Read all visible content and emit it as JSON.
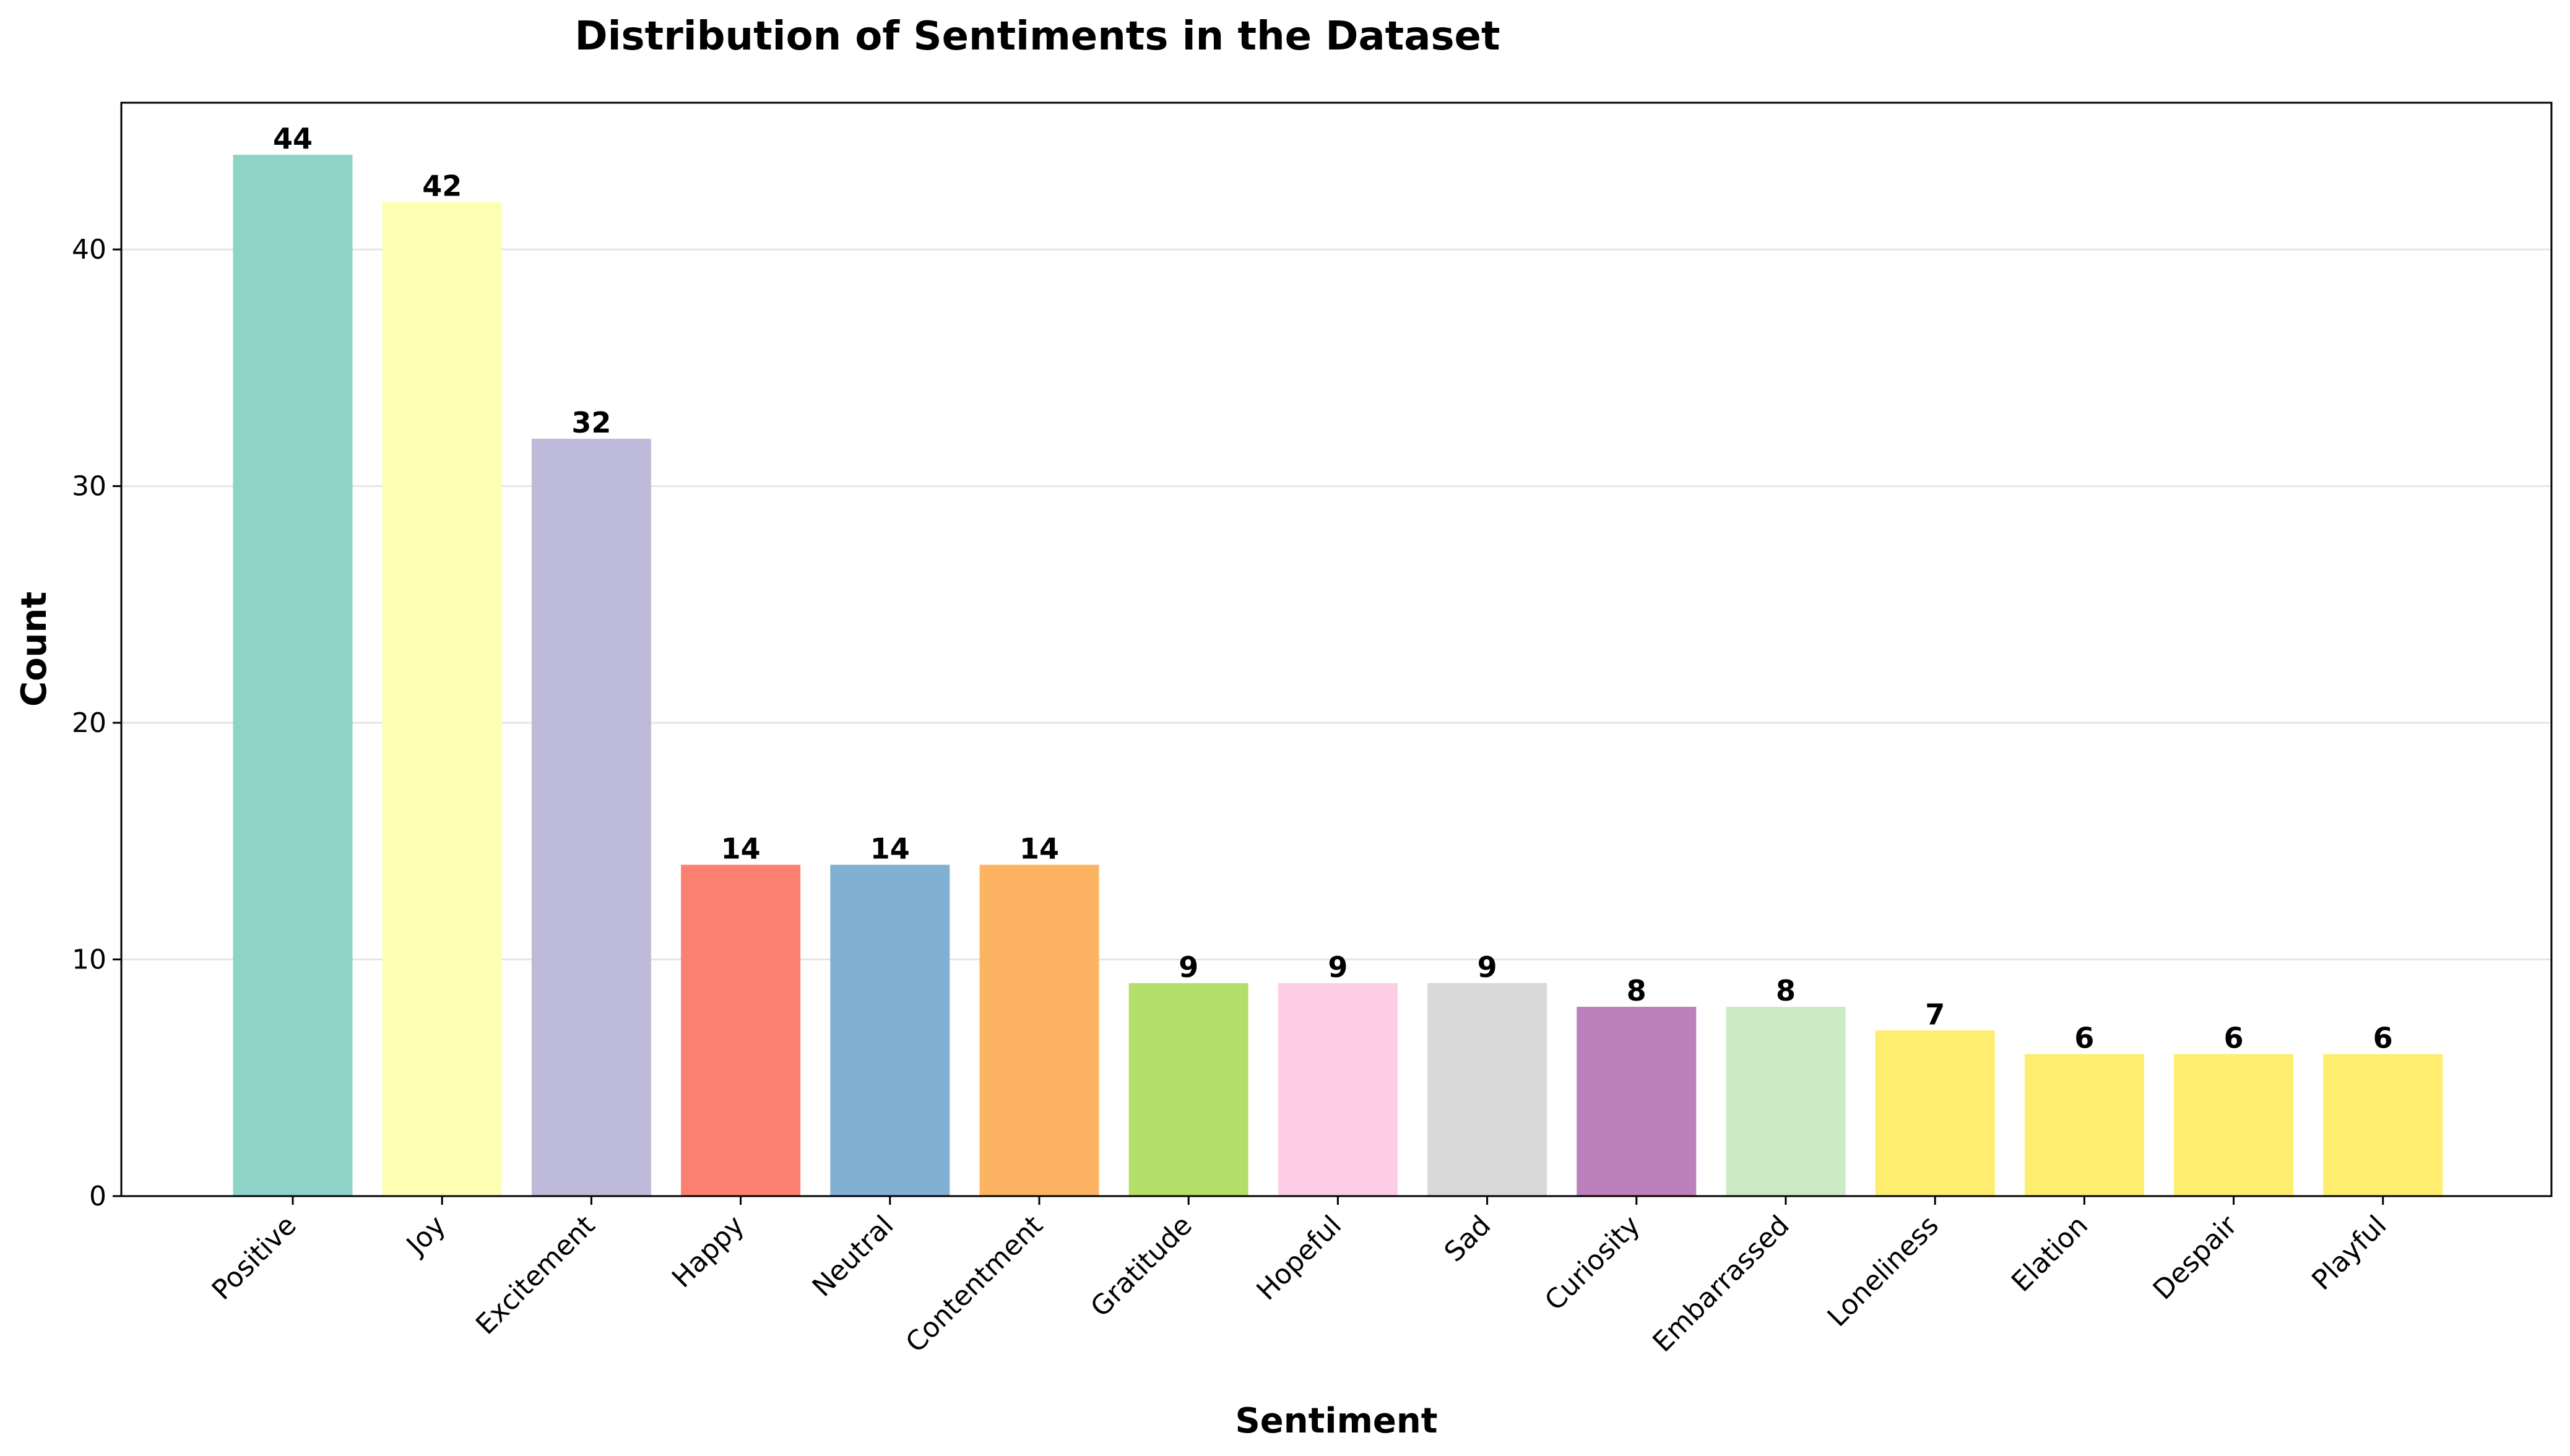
{
  "chart_data": {
    "type": "bar",
    "title": "Distribution of Sentiments in the Dataset",
    "xlabel": "Sentiment",
    "ylabel": "Count",
    "ylim": [
      0,
      46.2
    ],
    "yticks": [
      0,
      10,
      20,
      30,
      40
    ],
    "grid": "horizontal",
    "categories": [
      "Positive",
      "Joy",
      "Excitement",
      "Happy",
      "Neutral",
      "Contentment",
      "Gratitude",
      "Hopeful",
      "Sad",
      "Curiosity",
      "Embarrassed",
      "Loneliness",
      "Elation",
      "Despair",
      "Playful"
    ],
    "values": [
      44,
      42,
      32,
      14,
      14,
      14,
      9,
      9,
      9,
      8,
      8,
      7,
      6,
      6,
      6
    ],
    "colors": [
      "#8dd3c7",
      "#ffffb3",
      "#bebada",
      "#fb8072",
      "#80b1d3",
      "#fdb462",
      "#b3de69",
      "#fccde5",
      "#d9d9d9",
      "#bc80bd",
      "#ccebc5",
      "#ffed6f",
      "#ffed6f",
      "#ffed6f",
      "#ffed6f"
    ]
  }
}
